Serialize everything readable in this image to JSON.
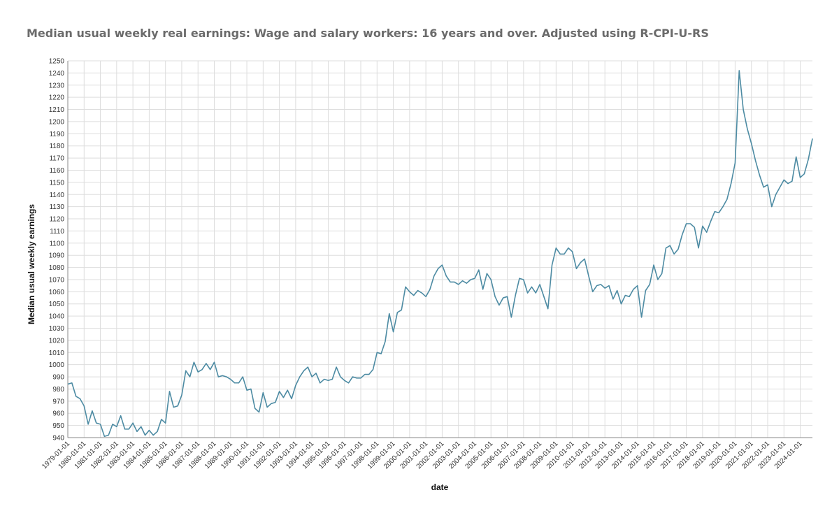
{
  "chart_data": {
    "type": "line",
    "title": "Median usual weekly real earnings: Wage and salary workers: 16 years and over. Adjusted using R-CPI-U-RS",
    "xlabel": "date",
    "ylabel": "Median usual weekly earnings",
    "ylim": [
      940,
      1250
    ],
    "ytick_step": 10,
    "grid": true,
    "colors": {
      "series": "#4d8ba3",
      "grid": "#dddddd"
    },
    "xticks": [
      "1979-01-01",
      "1980-01-01",
      "1981-01-01",
      "1982-01-01",
      "1983-01-01",
      "1984-01-01",
      "1985-01-01",
      "1986-01-01",
      "1987-01-01",
      "1988-01-01",
      "1989-01-01",
      "1990-01-01",
      "1991-01-01",
      "1992-01-01",
      "1993-01-01",
      "1994-01-01",
      "1995-01-01",
      "1996-01-01",
      "1997-01-01",
      "1998-01-01",
      "1999-01-01",
      "2000-01-01",
      "2001-01-01",
      "2002-01-01",
      "2003-01-01",
      "2004-01-01",
      "2005-01-01",
      "2006-01-01",
      "2007-01-01",
      "2008-01-01",
      "2009-01-01",
      "2010-01-01",
      "2011-01-01",
      "2012-01-01",
      "2013-01-01",
      "2014-01-01",
      "2015-01-01",
      "2016-01-01",
      "2017-01-01",
      "2018-01-01",
      "2019-01-01",
      "2020-01-01",
      "2021-01-01",
      "2022-01-01",
      "2023-01-01",
      "2024-01-01"
    ],
    "x_end": "2024-10-01",
    "frequency": "quarterly",
    "x_start": "1979-01-01",
    "values": [
      984,
      985,
      974,
      972,
      966,
      951,
      962,
      952,
      951,
      941,
      942,
      951,
      949,
      958,
      947,
      947,
      952,
      945,
      949,
      942,
      946,
      942,
      945,
      955,
      952,
      978,
      965,
      966,
      975,
      995,
      990,
      1002,
      994,
      996,
      1001,
      996,
      1002,
      990,
      991,
      990,
      988,
      985,
      985,
      990,
      979,
      980,
      964,
      961,
      977,
      965,
      968,
      969,
      978,
      973,
      979,
      972,
      983,
      990,
      995,
      998,
      990,
      993,
      985,
      988,
      987,
      988,
      998,
      990,
      987,
      985,
      990,
      989,
      989,
      992,
      992,
      996,
      1010,
      1009,
      1019,
      1042,
      1027,
      1043,
      1045,
      1064,
      1060,
      1057,
      1061,
      1059,
      1056,
      1062,
      1073,
      1079,
      1082,
      1073,
      1068,
      1068,
      1066,
      1069,
      1067,
      1070,
      1071,
      1078,
      1062,
      1075,
      1070,
      1056,
      1049,
      1055,
      1056,
      1039,
      1057,
      1071,
      1070,
      1059,
      1064,
      1059,
      1066,
      1056,
      1046,
      1082,
      1096,
      1091,
      1091,
      1096,
      1093,
      1079,
      1084,
      1087,
      1073,
      1060,
      1065,
      1066,
      1063,
      1065,
      1054,
      1061,
      1050,
      1057,
      1056,
      1062,
      1065,
      1039,
      1061,
      1066,
      1082,
      1070,
      1075,
      1096,
      1098,
      1091,
      1095,
      1107,
      1116,
      1116,
      1113,
      1096,
      1114,
      1109,
      1118,
      1126,
      1125,
      1130,
      1136,
      1149,
      1166,
      1242,
      1210,
      1194,
      1182,
      1168,
      1156,
      1146,
      1148,
      1130,
      1140,
      1146,
      1152,
      1149,
      1151,
      1171,
      1154,
      1157,
      1169,
      1186
    ]
  }
}
